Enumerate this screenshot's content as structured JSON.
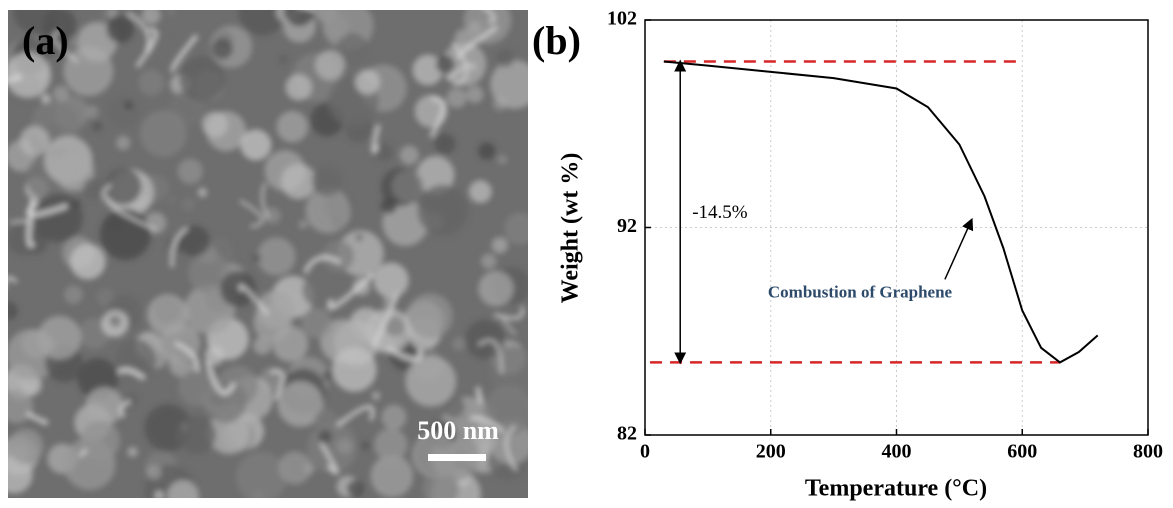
{
  "image": {
    "label": "(a)",
    "scale_bar": "500 nm"
  },
  "chart_data": {
    "type": "line",
    "panel_label": "(b)",
    "x_label": "Temperature (°C)",
    "y_label": "Weight (wt %)",
    "x": [
      30,
      100,
      200,
      300,
      400,
      450,
      500,
      540,
      570,
      600,
      630,
      660,
      690,
      720
    ],
    "series": [
      {
        "color": "#000000",
        "values": [
          100,
          99.8,
          99.5,
          99.2,
          98.7,
          97.8,
          96,
          93.5,
          91,
          88,
          86.2,
          85.5,
          86,
          86.8
        ]
      }
    ],
    "xlim": [
      0,
      800
    ],
    "xticks": [
      0,
      200,
      400,
      600,
      800
    ],
    "ylim": [
      82,
      102
    ],
    "yticks": [
      82,
      92,
      102
    ],
    "grid": true,
    "reference_lines": [
      {
        "value": 100,
        "from": 30,
        "to": 600,
        "color": "#d62728"
      },
      {
        "value": 85.5,
        "from": 8,
        "to": 660,
        "color": "#d62728"
      }
    ],
    "annotations": [
      {
        "text": "-14.5%",
        "x": 56,
        "from": 100,
        "to": 85.5
      },
      {
        "text": "Combustion of Graphene",
        "arrow_from": [
          477,
          89.5
        ],
        "arrow_to": [
          517,
          92.2
        ],
        "color": "#2e4a6b"
      }
    ]
  }
}
